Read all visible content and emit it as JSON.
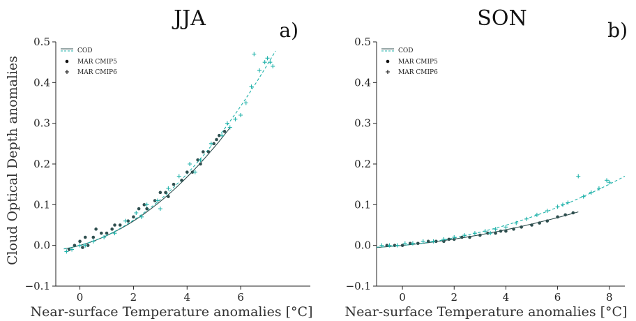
{
  "chart_data": [
    {
      "type": "scatter",
      "title": "JJA",
      "panel_label": "a)",
      "xlabel": "Near-surface Temperature anomalies [°C]",
      "ylabel": "Cloud Optical Depth anomalies",
      "xlim": [
        -0.9,
        8.6
      ],
      "ylim": [
        -0.1,
        0.5
      ],
      "xticks": [
        0,
        2,
        4,
        6
      ],
      "xtick_labels": [
        "0",
        "2",
        "4",
        "6"
      ],
      "yticks": [
        -0.1,
        0.0,
        0.1,
        0.2,
        0.3,
        0.4,
        0.5
      ],
      "ytick_labels": [
        "−0.1",
        "0.0",
        "0.1",
        "0.2",
        "0.3",
        "0.4",
        "0.5"
      ],
      "grid": false,
      "legend_position": "top-left",
      "legend": [
        "COD",
        "MAR CMIP5",
        "MAR CMIP6"
      ],
      "colors": {
        "cmip5": "#2f4f4f",
        "cmip6": "#20b2aa"
      },
      "series": [
        {
          "name": "MAR CMIP5",
          "marker": "dot",
          "x": [
            -0.4,
            -0.2,
            0.0,
            0.2,
            0.3,
            0.5,
            0.8,
            1.0,
            1.2,
            1.5,
            1.8,
            2.0,
            2.2,
            2.5,
            2.8,
            3.0,
            3.2,
            3.5,
            3.8,
            4.0,
            4.2,
            4.4,
            4.6,
            4.8,
            5.0,
            5.2,
            5.4,
            0.1,
            0.6,
            1.3,
            2.4,
            3.3,
            4.5,
            5.1
          ],
          "y": [
            -0.01,
            0.0,
            0.01,
            0.02,
            0.0,
            0.02,
            0.03,
            0.03,
            0.04,
            0.05,
            0.06,
            0.07,
            0.09,
            0.09,
            0.11,
            0.13,
            0.13,
            0.15,
            0.16,
            0.18,
            0.18,
            0.21,
            0.23,
            0.23,
            0.25,
            0.27,
            0.28,
            -0.005,
            0.04,
            0.05,
            0.1,
            0.12,
            0.2,
            0.26
          ]
        },
        {
          "name": "MAR CMIP6",
          "marker": "plus",
          "x": [
            -0.5,
            -0.3,
            0.0,
            0.2,
            0.5,
            0.9,
            1.3,
            1.7,
            2.1,
            2.5,
            2.9,
            3.3,
            3.7,
            4.1,
            4.5,
            4.9,
            5.3,
            5.6,
            5.8,
            6.0,
            6.2,
            6.4,
            6.5,
            6.7,
            6.9,
            7.0,
            7.1,
            7.2,
            2.3,
            3.0,
            4.3,
            5.5
          ],
          "y": [
            -0.015,
            -0.01,
            0.0,
            0.0,
            0.01,
            0.02,
            0.03,
            0.06,
            0.08,
            0.1,
            0.11,
            0.14,
            0.17,
            0.2,
            0.21,
            0.25,
            0.27,
            0.29,
            0.31,
            0.32,
            0.35,
            0.39,
            0.47,
            0.43,
            0.45,
            0.46,
            0.45,
            0.44,
            0.07,
            0.09,
            0.18,
            0.3
          ]
        }
      ],
      "fits": [
        {
          "name": "COD",
          "series": "MAR CMIP5",
          "style": "solid",
          "x_range": [
            -0.6,
            5.6
          ],
          "poly": [
            0.0,
            0.018,
            0.006
          ]
        },
        {
          "name": "COD",
          "series": "MAR CMIP6",
          "style": "dashed",
          "x_range": [
            -0.6,
            7.3
          ],
          "poly": [
            0.0,
            0.018,
            0.0065
          ]
        }
      ]
    },
    {
      "type": "scatter",
      "title": "SON",
      "panel_label": "b)",
      "xlabel": "Near-surface Temperature anomalies [°C]",
      "ylabel": "",
      "xlim": [
        -1.0,
        8.6
      ],
      "ylim": [
        -0.1,
        0.5
      ],
      "xticks": [
        0,
        2,
        4,
        6,
        8
      ],
      "xtick_labels": [
        "0",
        "2",
        "4",
        "6",
        "8"
      ],
      "yticks": [
        -0.1,
        0.0,
        0.1,
        0.2,
        0.3,
        0.4,
        0.5
      ],
      "ytick_labels": [
        "−0.1",
        "0.0",
        "0.1",
        "0.2",
        "0.3",
        "0.4",
        "0.5"
      ],
      "grid": false,
      "legend_position": "top-left",
      "legend": [
        "COD",
        "MAR CMIP5",
        "MAR CMIP6"
      ],
      "colors": {
        "cmip5": "#2f4f4f",
        "cmip6": "#20b2aa"
      },
      "series": [
        {
          "name": "MAR CMIP5",
          "marker": "dot",
          "x": [
            -0.6,
            -0.3,
            0.0,
            0.3,
            0.6,
            1.0,
            1.3,
            1.6,
            2.0,
            2.3,
            2.6,
            3.0,
            3.3,
            3.6,
            4.0,
            4.3,
            4.6,
            5.0,
            5.3,
            5.6,
            6.0,
            6.3,
            6.6,
            1.8,
            3.8
          ],
          "y": [
            0.0,
            0.0,
            0.0,
            0.005,
            0.005,
            0.01,
            0.01,
            0.01,
            0.015,
            0.02,
            0.02,
            0.025,
            0.03,
            0.03,
            0.035,
            0.04,
            0.045,
            0.05,
            0.055,
            0.06,
            0.07,
            0.075,
            0.08,
            0.015,
            0.035
          ]
        },
        {
          "name": "MAR CMIP6",
          "marker": "plus",
          "x": [
            -0.8,
            -0.5,
            -0.2,
            0.1,
            0.4,
            0.8,
            1.2,
            1.6,
            2.0,
            2.4,
            2.8,
            3.2,
            3.6,
            4.0,
            4.4,
            4.8,
            5.2,
            5.6,
            6.0,
            6.4,
            6.8,
            7.0,
            7.3,
            7.6,
            7.9,
            8.0,
            6.2,
            3.4
          ],
          "y": [
            0.0,
            0.0,
            0.0,
            0.005,
            0.005,
            0.01,
            0.01,
            0.015,
            0.02,
            0.025,
            0.03,
            0.035,
            0.04,
            0.045,
            0.055,
            0.065,
            0.075,
            0.085,
            0.095,
            0.105,
            0.17,
            0.12,
            0.13,
            0.14,
            0.16,
            0.155,
            0.1,
            0.03
          ]
        }
      ],
      "fits": [
        {
          "name": "COD",
          "series": "MAR CMIP5",
          "style": "solid",
          "x_range": [
            -1.0,
            6.8
          ],
          "poly": [
            0.0,
            0.006,
            0.0009
          ]
        },
        {
          "name": "COD",
          "series": "MAR CMIP6",
          "style": "dashed",
          "x_range": [
            -1.0,
            8.6
          ],
          "poly": [
            0.0,
            0.006,
            0.0016
          ]
        }
      ]
    }
  ]
}
